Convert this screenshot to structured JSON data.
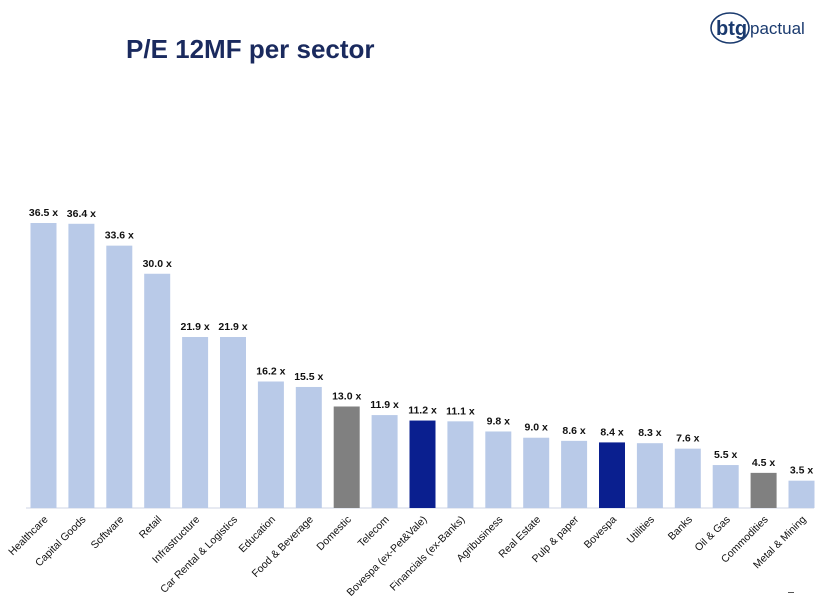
{
  "page": {
    "title": "P/E 12MF per sector",
    "logo": {
      "part1": "btg",
      "part2": "pactual"
    }
  },
  "colors": {
    "default_bar": "#b9cae8",
    "highlight_gray": "#808080",
    "highlight_navy": "#0a1f8f",
    "title": "#1a2a5e"
  },
  "chart_data": {
    "type": "bar",
    "title": "P/E 12MF per sector",
    "value_suffix": " x",
    "categories": [
      "Healthcare",
      "Capital Goods",
      "Software",
      "Retail",
      "Infrastructure",
      "Car Rental & Logistics",
      "Education",
      "Food & Beverage",
      "Domestic",
      "Telecom",
      "Bovespa (ex-Pet&Vale)",
      "Financials (ex-Banks)",
      "Agribusiness",
      "Real Estate",
      "Pulp & paper",
      "Bovespa",
      "Utilities",
      "Banks",
      "Oil & Gas",
      "Commodities",
      "Metal & Mining"
    ],
    "values": [
      36.5,
      36.4,
      33.6,
      30.0,
      21.9,
      21.9,
      16.2,
      15.5,
      13.0,
      11.9,
      11.2,
      11.1,
      9.8,
      9.0,
      8.6,
      8.4,
      8.3,
      7.6,
      5.5,
      4.5,
      3.5
    ],
    "value_labels": [
      "36.5 x",
      "36.4 x",
      "33.6 x",
      "30.0 x",
      "21.9 x",
      "21.9 x",
      "16.2 x",
      "15.5 x",
      "13.0 x",
      "11.9 x",
      "11.2 x",
      "11.1 x",
      "9.8 x",
      "9.0 x",
      "8.6 x",
      "8.4 x",
      "8.3 x",
      "7.6 x",
      "5.5 x",
      "4.5 x",
      "3.5 x"
    ],
    "bar_colors": [
      "default",
      "default",
      "default",
      "default",
      "default",
      "default",
      "default",
      "default",
      "gray",
      "default",
      "navy",
      "default",
      "default",
      "default",
      "default",
      "navy",
      "default",
      "default",
      "default",
      "gray",
      "default"
    ],
    "ylim": [
      0,
      36.5
    ],
    "grid": false,
    "legend": "none"
  }
}
